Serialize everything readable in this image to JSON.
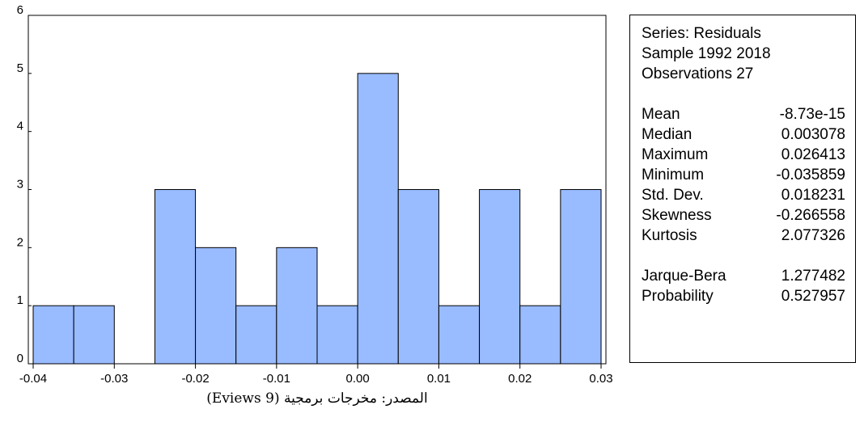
{
  "chart_data": {
    "type": "bar",
    "bins": [
      {
        "from": -0.04,
        "to": -0.035,
        "count": 1
      },
      {
        "from": -0.035,
        "to": -0.03,
        "count": 1
      },
      {
        "from": -0.03,
        "to": -0.025,
        "count": 0
      },
      {
        "from": -0.025,
        "to": -0.02,
        "count": 3
      },
      {
        "from": -0.02,
        "to": -0.015,
        "count": 2
      },
      {
        "from": -0.015,
        "to": -0.01,
        "count": 1
      },
      {
        "from": -0.01,
        "to": -0.005,
        "count": 2
      },
      {
        "from": -0.005,
        "to": 0.0,
        "count": 1
      },
      {
        "from": 0.0,
        "to": 0.005,
        "count": 5
      },
      {
        "from": 0.005,
        "to": 0.01,
        "count": 3
      },
      {
        "from": 0.01,
        "to": 0.015,
        "count": 1
      },
      {
        "from": 0.015,
        "to": 0.02,
        "count": 3
      },
      {
        "from": 0.02,
        "to": 0.025,
        "count": 1
      },
      {
        "from": 0.025,
        "to": 0.03,
        "count": 3
      }
    ],
    "xlim": [
      -0.04,
      0.03
    ],
    "ylim": [
      0,
      6
    ],
    "x_ticks": [
      "-0.04",
      "-0.03",
      "-0.02",
      "-0.01",
      "0.00",
      "0.01",
      "0.02",
      "0.03"
    ],
    "x_tick_values": [
      -0.04,
      -0.03,
      -0.02,
      -0.01,
      0.0,
      0.01,
      0.02,
      0.03
    ],
    "y_ticks": [
      "0",
      "1",
      "2",
      "3",
      "4",
      "5",
      "6"
    ],
    "y_tick_values": [
      0,
      1,
      2,
      3,
      4,
      5,
      6
    ],
    "bar_color": "#99bbff",
    "title": "",
    "xlabel": "",
    "ylabel": "",
    "grid": false,
    "legend": false
  },
  "stats": {
    "series": "Series: Residuals",
    "sample": "Sample 1992 2018",
    "observations": "Observations 27",
    "rows": [
      {
        "label": "Mean",
        "value": "-8.73e-15"
      },
      {
        "label": "Median",
        "value": "0.003078"
      },
      {
        "label": "Maximum",
        "value": "0.026413"
      },
      {
        "label": "Minimum",
        "value": "-0.035859"
      },
      {
        "label": "Std. Dev.",
        "value": "0.018231"
      },
      {
        "label": "Skewness",
        "value": "-0.266558"
      },
      {
        "label": "Kurtosis",
        "value": "2.077326"
      }
    ],
    "tests": [
      {
        "label": "Jarque-Bera",
        "value": "1.277482"
      },
      {
        "label": "Probability",
        "value": "0.527957"
      }
    ]
  },
  "source": "المصدر: مخرجات برمجية (Eviews 9)"
}
